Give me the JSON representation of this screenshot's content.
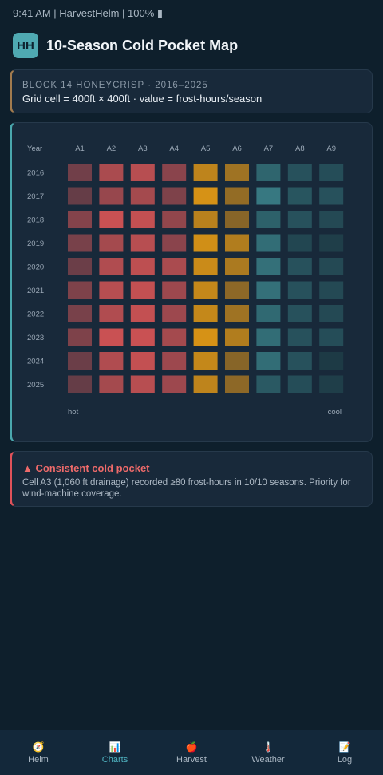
{
  "status_bar": {
    "text": "9:41 AM | HarvestHelm | 100% ▮"
  },
  "header": {
    "logo": "HH",
    "title": "10-Season Cold Pocket Map"
  },
  "info": {
    "overline": "BLOCK 14 HONEYCRISP · 2016–2025",
    "description": "Grid cell = 400ft × 400ft · value = frost-hours/season"
  },
  "colors": {
    "background": "#0e1f2c",
    "card": "#18293a",
    "accent_teal": "#4aa7ad",
    "accent_red": "#e0525a",
    "accent_brown": "#a27b4e"
  },
  "chart_data": {
    "type": "heatmap",
    "corner_label": "Year",
    "columns": [
      "A1",
      "A2",
      "A3",
      "A4",
      "A5",
      "A6",
      "A7",
      "A8",
      "A9"
    ],
    "rows": [
      "2016",
      "2017",
      "2018",
      "2019",
      "2020",
      "2021",
      "2022",
      "2023",
      "2024",
      "2025"
    ],
    "scale_labels": {
      "low": "hot",
      "high": "cool"
    },
    "values": [
      [
        0.2,
        0.65,
        0.75,
        0.4,
        0.8,
        0.55,
        0.65,
        0.4,
        0.35
      ],
      [
        0.1,
        0.5,
        0.6,
        0.3,
        1.0,
        0.45,
        0.9,
        0.45,
        0.4
      ],
      [
        0.35,
        0.9,
        0.85,
        0.45,
        0.75,
        0.35,
        0.6,
        0.4,
        0.3
      ],
      [
        0.25,
        0.6,
        0.75,
        0.4,
        0.95,
        0.7,
        0.75,
        0.25,
        0.15
      ],
      [
        0.15,
        0.7,
        0.8,
        0.65,
        0.9,
        0.65,
        0.8,
        0.4,
        0.3
      ],
      [
        0.3,
        0.75,
        0.85,
        0.55,
        0.85,
        0.4,
        0.8,
        0.4,
        0.3
      ],
      [
        0.25,
        0.7,
        0.85,
        0.55,
        0.85,
        0.55,
        0.7,
        0.4,
        0.3
      ],
      [
        0.3,
        0.9,
        0.9,
        0.6,
        1.0,
        0.7,
        0.75,
        0.4,
        0.35
      ],
      [
        0.15,
        0.7,
        0.85,
        0.55,
        0.85,
        0.35,
        0.75,
        0.4,
        0.1
      ],
      [
        0.1,
        0.6,
        0.75,
        0.55,
        0.8,
        0.4,
        0.5,
        0.35,
        0.15
      ]
    ],
    "column_hues": [
      "red",
      "red",
      "red",
      "red",
      "amber",
      "amber",
      "teal",
      "teal",
      "teal"
    ]
  },
  "alert": {
    "title": "▲ Consistent cold pocket",
    "body": "Cell A3 (1,060 ft drainage) recorded ≥80 frost-hours in 10/10 seasons. Priority for wind-machine coverage."
  },
  "tabs": [
    {
      "label": "Helm",
      "icon": "🧭",
      "icon_name": "compass-icon",
      "active": false
    },
    {
      "label": "Charts",
      "icon": "📊",
      "icon_name": "bar-chart-icon",
      "active": true
    },
    {
      "label": "Harvest",
      "icon": "🍎",
      "icon_name": "apple-icon",
      "active": false
    },
    {
      "label": "Weather",
      "icon": "🌡️",
      "icon_name": "thermometer-icon",
      "active": false
    },
    {
      "label": "Log",
      "icon": "📝",
      "icon_name": "memo-icon",
      "active": false
    }
  ]
}
